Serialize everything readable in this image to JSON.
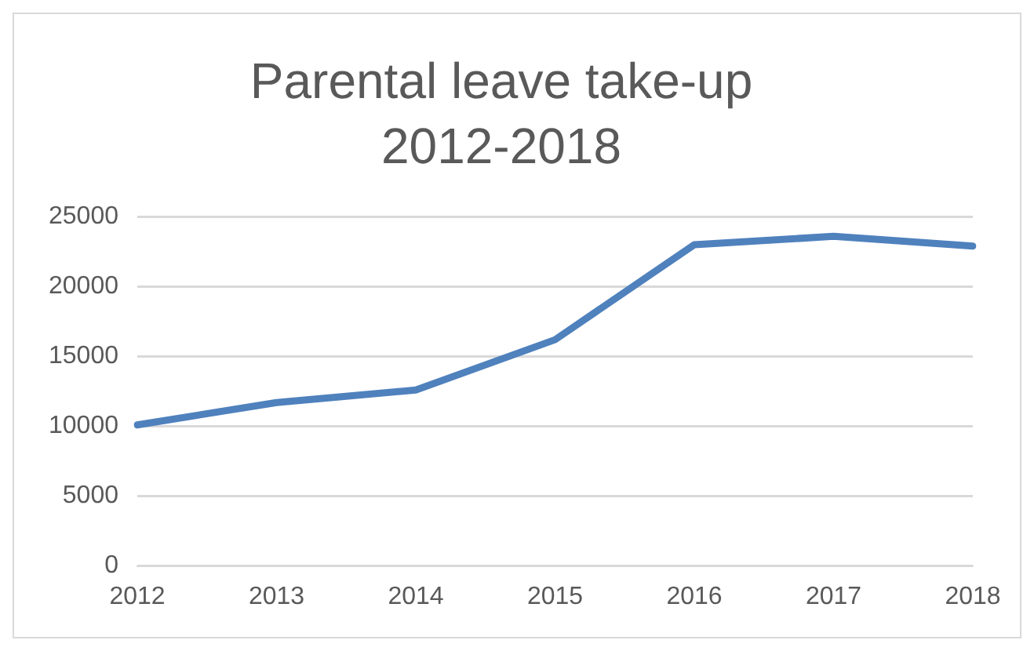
{
  "chart_data": {
    "type": "line",
    "title": "Parental leave take-up\n2012-2018",
    "categories": [
      "2012",
      "2013",
      "2014",
      "2015",
      "2016",
      "2017",
      "2018"
    ],
    "series": [
      {
        "color": "#4f81bd",
        "values": [
          10100,
          11700,
          12600,
          16200,
          23000,
          23600,
          22900
        ]
      }
    ],
    "ylim": [
      0,
      25000
    ],
    "yticks": [
      0,
      5000,
      10000,
      15000,
      20000,
      25000
    ],
    "grid": "y",
    "legend": false,
    "marker": "none",
    "line_style": "solid"
  }
}
